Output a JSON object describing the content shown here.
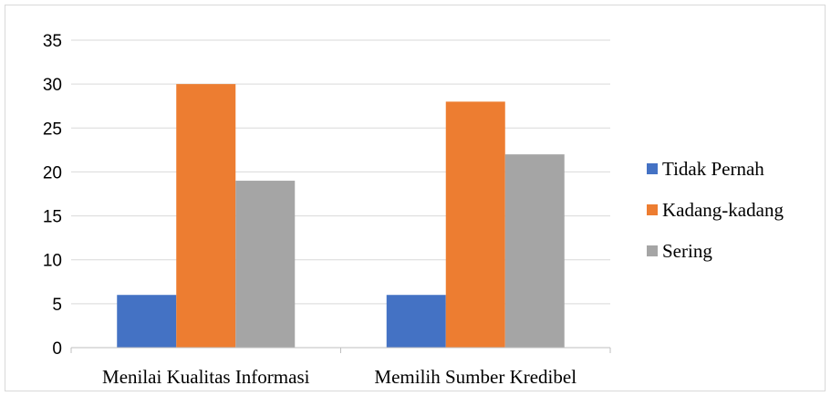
{
  "chart_data": {
    "type": "bar",
    "title": "",
    "xlabel": "",
    "ylabel": "",
    "categories": [
      "Menilai Kualitas Informasi",
      "Memilih Sumber Kredibel"
    ],
    "series": [
      {
        "name": "Tidak Pernah",
        "values": [
          6,
          6
        ],
        "color": "#4472c4"
      },
      {
        "name": "Kadang-kadang",
        "values": [
          30,
          28
        ],
        "color": "#ed7d31"
      },
      {
        "name": "Sering",
        "values": [
          19,
          22
        ],
        "color": "#a5a5a5"
      }
    ],
    "ylim": [
      0,
      35
    ],
    "yticks": [
      "0",
      "5",
      "10",
      "15",
      "20",
      "25",
      "30",
      "35"
    ],
    "grid": true,
    "legend_position": "right"
  }
}
